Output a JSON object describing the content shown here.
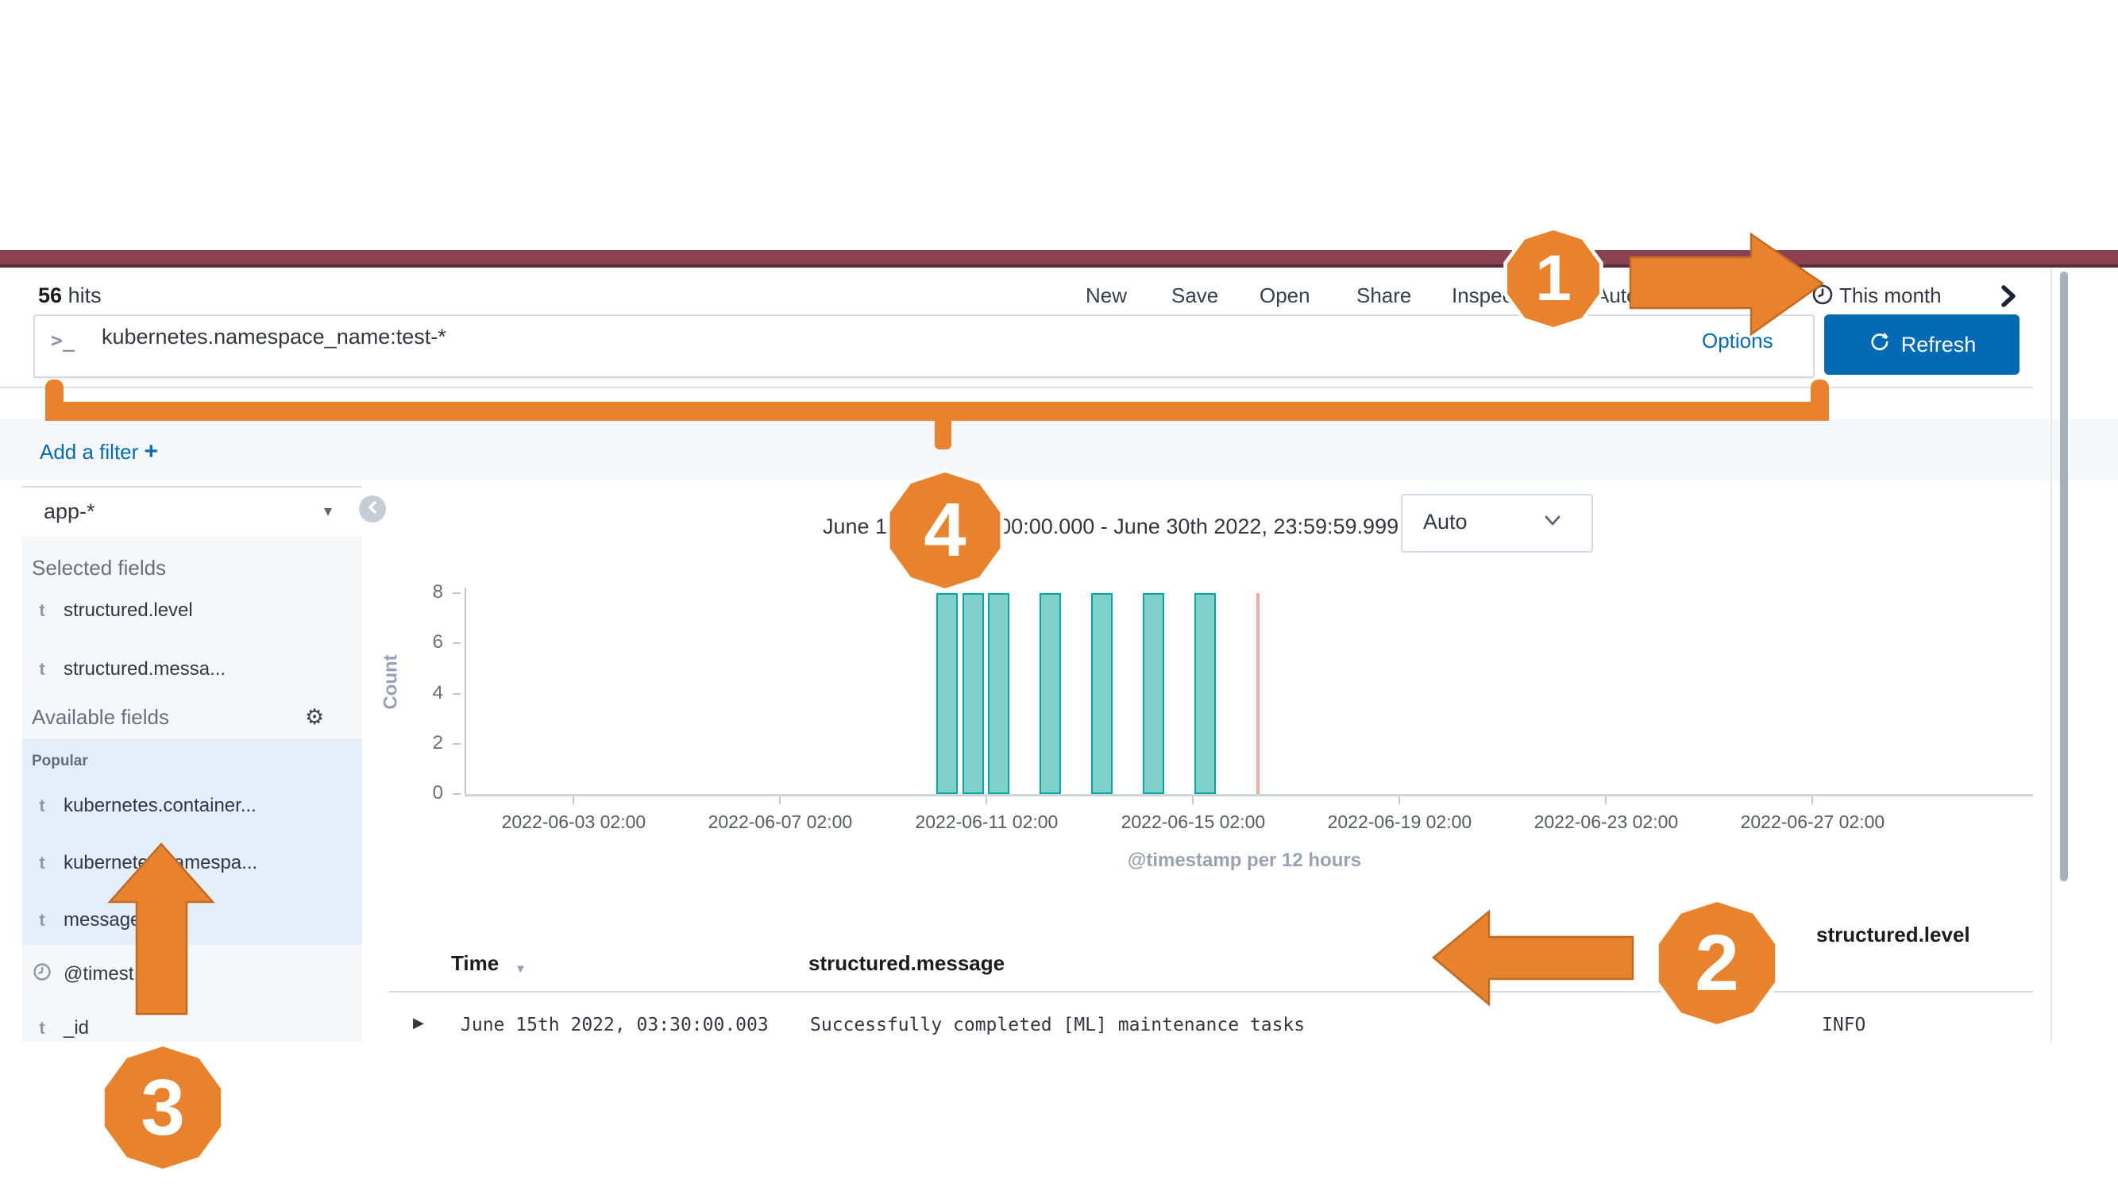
{
  "header": {
    "hits_value": "56",
    "hits_label": "hits",
    "menu": [
      "New",
      "Save",
      "Open",
      "Share",
      "Inspect",
      "Auto-refresh"
    ],
    "time_picker": {
      "label": "This month"
    }
  },
  "search": {
    "prompt_icon": ">_",
    "query": "kubernetes.namespace_name:test-*",
    "options_label": "Options",
    "refresh_label": "Refresh"
  },
  "filters": {
    "add_filter_label": "Add a filter",
    "plus_icon": "+"
  },
  "sidebar": {
    "index_pattern": "app-*",
    "selected_fields_title": "Selected fields",
    "available_fields_title": "Available fields",
    "popular_title": "Popular",
    "selected_fields": [
      {
        "icon": "t",
        "name": "structured.level"
      },
      {
        "icon": "t",
        "name": "structured.messa..."
      }
    ],
    "popular_fields": [
      {
        "icon": "t",
        "name": "kubernetes.container..."
      },
      {
        "icon": "t",
        "name": "kubernetes.namespa..."
      },
      {
        "icon": "t",
        "name": "message"
      }
    ],
    "other_fields": [
      {
        "icon": "clock",
        "name": "@timest..."
      },
      {
        "icon": "t",
        "name": "_id"
      }
    ]
  },
  "chart": {
    "title": "June 1st 2022, 00:00:00.000 - June 30th 2022, 23:59:59.999 —",
    "interval_label": "Auto"
  },
  "chart_data": {
    "type": "bar",
    "title": "June 1st 2022, 00:00:00.000 - June 30th 2022, 23:59:59.999",
    "xlabel": "@timestamp per 12 hours",
    "ylabel": "Count",
    "ylim": [
      0,
      8
    ],
    "yticks": [
      0,
      2,
      4,
      6,
      8
    ],
    "x_domain": [
      "2022-06-01 00:00",
      "2022-06-30 23:59"
    ],
    "xticks": [
      "2022-06-03 02:00",
      "2022-06-07 02:00",
      "2022-06-11 02:00",
      "2022-06-15 02:00",
      "2022-06-19 02:00",
      "2022-06-23 02:00",
      "2022-06-27 02:00"
    ],
    "bucket_hours": 12,
    "x": [
      "2022-06-10 02:00",
      "2022-06-10 14:00",
      "2022-06-11 02:00",
      "2022-06-12 02:00",
      "2022-06-13 02:00",
      "2022-06-14 02:00",
      "2022-06-15 02:00"
    ],
    "values": [
      8,
      8,
      8,
      8,
      8,
      8,
      8
    ],
    "total_hits": 56,
    "time_marker": "2022-06-16 08:00",
    "bar_fill": "#7fd2cc",
    "bar_border": "#00a9a5",
    "marker_color": "#f4a6a2",
    "legend": false,
    "grid": false
  },
  "table": {
    "columns": [
      {
        "label": "Time",
        "sortable": true
      },
      {
        "label": "structured.message"
      },
      {
        "label": "structured.level"
      }
    ],
    "rows": [
      {
        "time": "June 15th 2022, 03:30:00.003",
        "message": "Successfully completed [ML] maintenance tasks",
        "level": "INFO"
      }
    ]
  },
  "annotations": {
    "badges": [
      "1",
      "2",
      "3",
      "4"
    ]
  },
  "colors": {
    "brand_maroon": "#8a4252",
    "accent_orange": "#e8822d",
    "link_blue": "#006bb4",
    "button_blue": "#006bb4",
    "bar_fill": "#7fd2cc",
    "bar_border": "#00a9a5",
    "marker_pink": "#f4a6a2",
    "sidebar_bg": "#f5f7fa",
    "popular_bg": "#e4eef9"
  }
}
